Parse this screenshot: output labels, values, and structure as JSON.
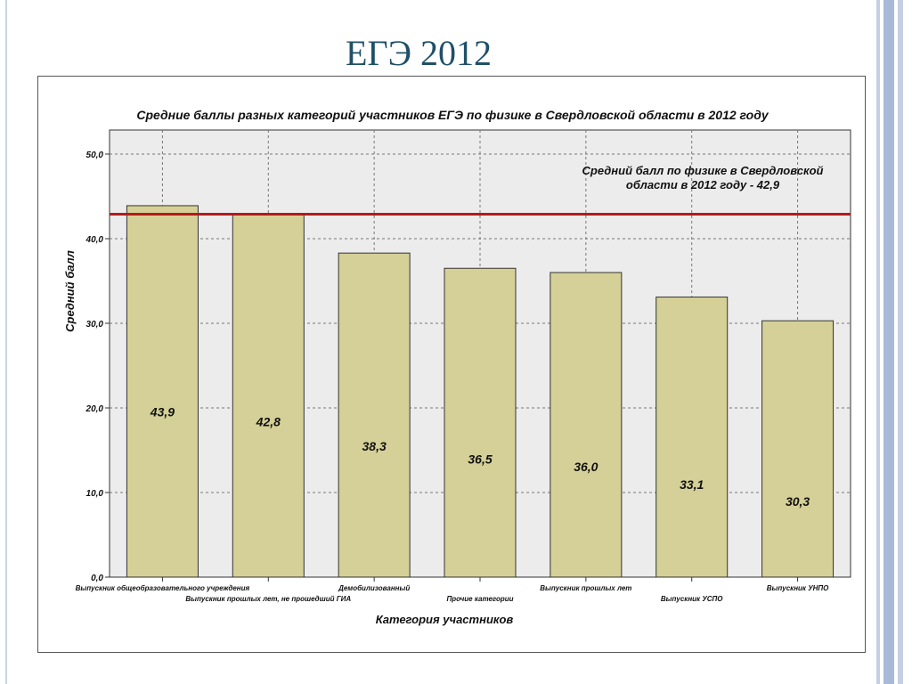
{
  "slide": {
    "title": "ЕГЭ 2012"
  },
  "chart_data": {
    "type": "bar",
    "title": "Средние баллы разных категорий участников ЕГЭ по физике в Свердловской области в 2012 году",
    "xlabel": "Категория участников",
    "ylabel": "Средний балл",
    "ylim": [
      0,
      50
    ],
    "yticks": [
      "0,0",
      "10,0",
      "20,0",
      "30,0",
      "40,0",
      "50,0"
    ],
    "grid": true,
    "categories": [
      "Выпускник общеобразовательного учреждения",
      "Выпускник прошлых лет, не прошедший ГИА",
      "Демобилизованный",
      "Прочие категории",
      "Выпускник прошлых лет",
      "Выпускник УСПО",
      "Выпускник УНПО"
    ],
    "values": [
      43.9,
      42.8,
      38.3,
      36.5,
      36.0,
      33.1,
      30.3
    ],
    "value_labels": [
      "43,9",
      "42,8",
      "38,3",
      "36,5",
      "36,0",
      "33,1",
      "30,3"
    ],
    "reference_line": {
      "value": 42.9,
      "label_line1": "Средний балл по физике в Свердловской",
      "label_line2": "области в 2012 году - 42,9"
    },
    "colors": {
      "bar": "#d5d097",
      "plot_bg": "#ececec",
      "reference_line": "#b01c1c"
    }
  }
}
